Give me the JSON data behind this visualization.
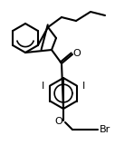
{
  "bg_color": "#ffffff",
  "line_color": "#000000",
  "line_width": 1.5,
  "figsize": [
    1.48,
    1.6
  ],
  "dpi": 100,
  "text_color": "#000000",
  "font_size": 7,
  "label_I1": "I",
  "label_I2": "I",
  "label_O1": "O",
  "label_O2": "O",
  "label_Br": "Br"
}
